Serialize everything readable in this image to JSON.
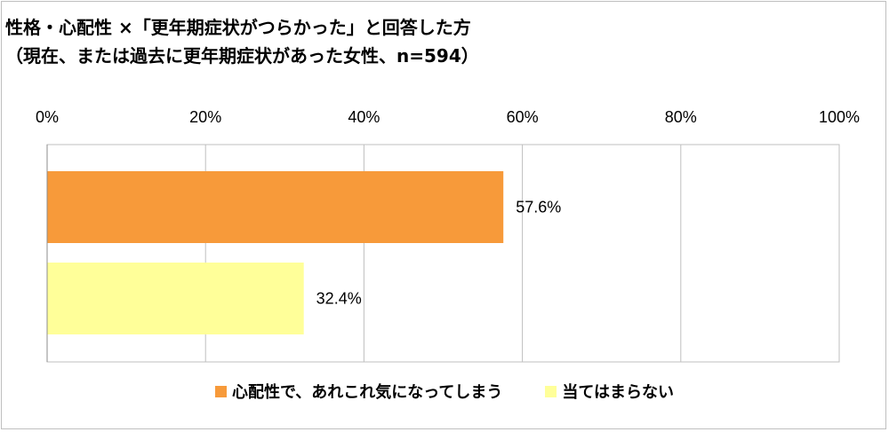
{
  "header": {
    "title": "性格・心配性 ×「更年期症状がつらかった」と回答した方",
    "subtitle": "（現在、または過去に更年期症状があった女性、n=594）"
  },
  "chart_data": {
    "type": "bar",
    "orientation": "horizontal",
    "xlim": [
      0,
      100
    ],
    "x_ticks": [
      0,
      20,
      40,
      60,
      80,
      100
    ],
    "x_tick_labels": [
      "0%",
      "20%",
      "40%",
      "60%",
      "80%",
      "100%"
    ],
    "x_axis_position": "top",
    "grid": true,
    "legend_position": "bottom",
    "series": [
      {
        "name": "心配性で、あれこれ気になってしまう",
        "value": 57.6,
        "label": "57.6%",
        "color": "#f79a3a"
      },
      {
        "name": "当てはまらない",
        "value": 32.4,
        "label": "32.4%",
        "color": "#ffff99"
      }
    ]
  }
}
